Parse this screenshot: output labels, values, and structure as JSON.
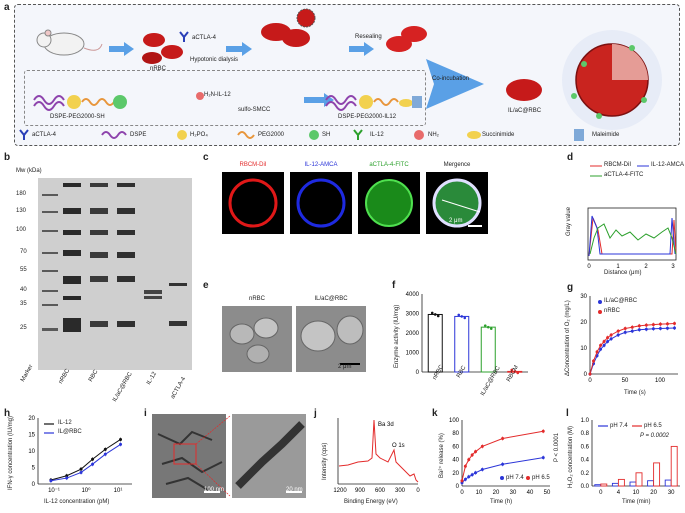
{
  "panels": {
    "a": "a",
    "b": "b",
    "c": "c",
    "d": "d",
    "e": "e",
    "f": "f",
    "g": "g",
    "h": "h",
    "i": "i",
    "j": "j",
    "k": "k",
    "l": "l"
  },
  "a": {
    "nrbc": "nRBC",
    "actla4": "aCTLA-4",
    "hypotonic": "Hypotonic dialysis",
    "resealing": "Resealing",
    "coincubation": "Co-incubation",
    "il_ac_rbc": "IL/aC@RBC",
    "dspe_peg_sh": "DSPE-PEG2000-SH",
    "h2n_il12": "H₂N-IL-12",
    "sulfo_smcc": "sulfo-SMCC",
    "dspe_peg_il12": "DSPE-PEG2000-IL12",
    "legend": [
      "aCTLA-4",
      "DSPE",
      "H₂PO₄",
      "PEG2000",
      "SH",
      "IL-12",
      "NH₂",
      "Succinimide",
      "Maleimide"
    ]
  },
  "b": {
    "mw": "Mw (kDa)",
    "ladder": [
      "180",
      "130",
      "100",
      "70",
      "55",
      "40",
      "35",
      "25"
    ],
    "lanes": [
      "Marker",
      "nRBC",
      "RBC",
      "IL/aC@RBC",
      "IL-12",
      "aCTLA-4"
    ]
  },
  "c": {
    "titles": [
      "RBCM-DiI",
      "IL-12-AMCA",
      "aCTLA-4-FITC",
      "Mergence"
    ],
    "scale": "2 μm"
  },
  "e": {
    "titles": [
      "nRBC",
      "IL/aC@RBC"
    ],
    "scale": "2 μm"
  },
  "i": {
    "scale1": "100 nm",
    "scale2": "20 nm"
  },
  "colors": {
    "red": "#e32b2b",
    "blue": "#2b35d8",
    "green": "#2ca02c",
    "black": "#111111"
  },
  "chart_data": [
    {
      "id": "d",
      "type": "line",
      "xlabel": "Distance (μm)",
      "ylabel": "Gray value",
      "xticks": [
        "0",
        "1",
        "2",
        "3"
      ],
      "legend": [
        "RBCM-DiI",
        "IL-12-AMCA",
        "aCTLA-4-FITC"
      ]
    },
    {
      "id": "f",
      "type": "bar",
      "categories": [
        "nRBC",
        "RBC",
        "IL/aC@RBC",
        "RBCM"
      ],
      "values": [
        2950,
        2850,
        2300,
        30
      ],
      "ylabel": "Enzyme activity (IU/mg)",
      "yticks": [
        "0",
        "1000",
        "2000",
        "3000",
        "4000"
      ],
      "ylim": [
        0,
        4000
      ]
    },
    {
      "id": "g",
      "type": "line",
      "xlabel": "Time (s)",
      "ylabel": "ΔConcentration of O₂ (mg/L)",
      "xticks": [
        "0",
        "50",
        "100"
      ],
      "yticks": [
        "0",
        "10",
        "20",
        "30"
      ],
      "xlim": [
        0,
        125
      ],
      "ylim": [
        0,
        30
      ],
      "series": [
        {
          "name": "IL/aC@RBC",
          "x": [
            0,
            5,
            10,
            15,
            20,
            25,
            30,
            40,
            50,
            60,
            70,
            80,
            90,
            100,
            110,
            120
          ],
          "y": [
            0,
            4,
            7,
            9.5,
            11,
            12.5,
            13.5,
            15,
            16,
            16.5,
            17,
            17.2,
            17.4,
            17.5,
            17.6,
            17.7
          ]
        },
        {
          "name": "nRBC",
          "x": [
            0,
            5,
            10,
            15,
            20,
            25,
            30,
            40,
            50,
            60,
            70,
            80,
            90,
            100,
            110,
            120
          ],
          "y": [
            0,
            5,
            8.5,
            11,
            12.5,
            14,
            15,
            16.5,
            17.5,
            18,
            18.5,
            18.8,
            19,
            19.2,
            19.3,
            19.4
          ]
        }
      ]
    },
    {
      "id": "h",
      "type": "line",
      "xlabel": "IL-12 concentration (pM)",
      "ylabel": "IFN-γ concentration (IU/mg)",
      "xticks": [
        "10⁻¹",
        "10⁰",
        "10¹"
      ],
      "yticks": [
        "0",
        "5",
        "10",
        "15",
        "20"
      ],
      "ylim": [
        0,
        20
      ],
      "series": [
        {
          "name": "IL-12",
          "x": [
            0.08,
            0.25,
            0.7,
            1.6,
            4,
            12
          ],
          "y": [
            1.2,
            2.5,
            4.5,
            7.5,
            10.5,
            13.5
          ]
        },
        {
          "name": "IL@RBC",
          "x": [
            0.08,
            0.25,
            0.7,
            1.6,
            4,
            12
          ],
          "y": [
            1,
            1.8,
            3.5,
            6,
            9,
            12
          ]
        }
      ]
    },
    {
      "id": "j",
      "type": "line",
      "xlabel": "Binding Energy (eV)",
      "ylabel": "Intensity (cps)",
      "xticks": [
        "1200",
        "900",
        "600",
        "300",
        "0"
      ],
      "annotations": [
        "Ba 3d",
        "O 1s"
      ]
    },
    {
      "id": "k",
      "type": "line",
      "xlabel": "Time (h)",
      "ylabel": "Ba²⁺ release (%)",
      "xticks": [
        "0",
        "10",
        "20",
        "30",
        "40",
        "50"
      ],
      "yticks": [
        "0",
        "20",
        "40",
        "60",
        "80",
        "100"
      ],
      "xlim": [
        0,
        52
      ],
      "ylim": [
        0,
        100
      ],
      "annotation": "P < 0.0001",
      "series": [
        {
          "name": "pH 7.4",
          "x": [
            0,
            2,
            4,
            6,
            8,
            12,
            24,
            48
          ],
          "y": [
            5,
            10,
            14,
            17,
            20,
            25,
            33,
            43
          ]
        },
        {
          "name": "pH 6.5",
          "x": [
            0,
            2,
            4,
            6,
            8,
            12,
            24,
            48
          ],
          "y": [
            8,
            30,
            40,
            47,
            52,
            60,
            72,
            83
          ]
        }
      ]
    },
    {
      "id": "l",
      "type": "bar",
      "xlabel": "Time (min)",
      "ylabel": "H₂O₂ concentration (M)",
      "categories": [
        "0",
        "4",
        "10",
        "20",
        "30"
      ],
      "yticks": [
        "0.0",
        "0.2",
        "0.4",
        "0.6",
        "0.8",
        "1.0"
      ],
      "ylim": [
        0,
        1.0
      ],
      "annotation": "P = 0.0002",
      "series": [
        {
          "name": "pH 7.4",
          "values": [
            0.02,
            0.04,
            0.06,
            0.08,
            0.09
          ]
        },
        {
          "name": "pH 6.5",
          "values": [
            0.03,
            0.1,
            0.2,
            0.35,
            0.6
          ]
        }
      ]
    }
  ]
}
